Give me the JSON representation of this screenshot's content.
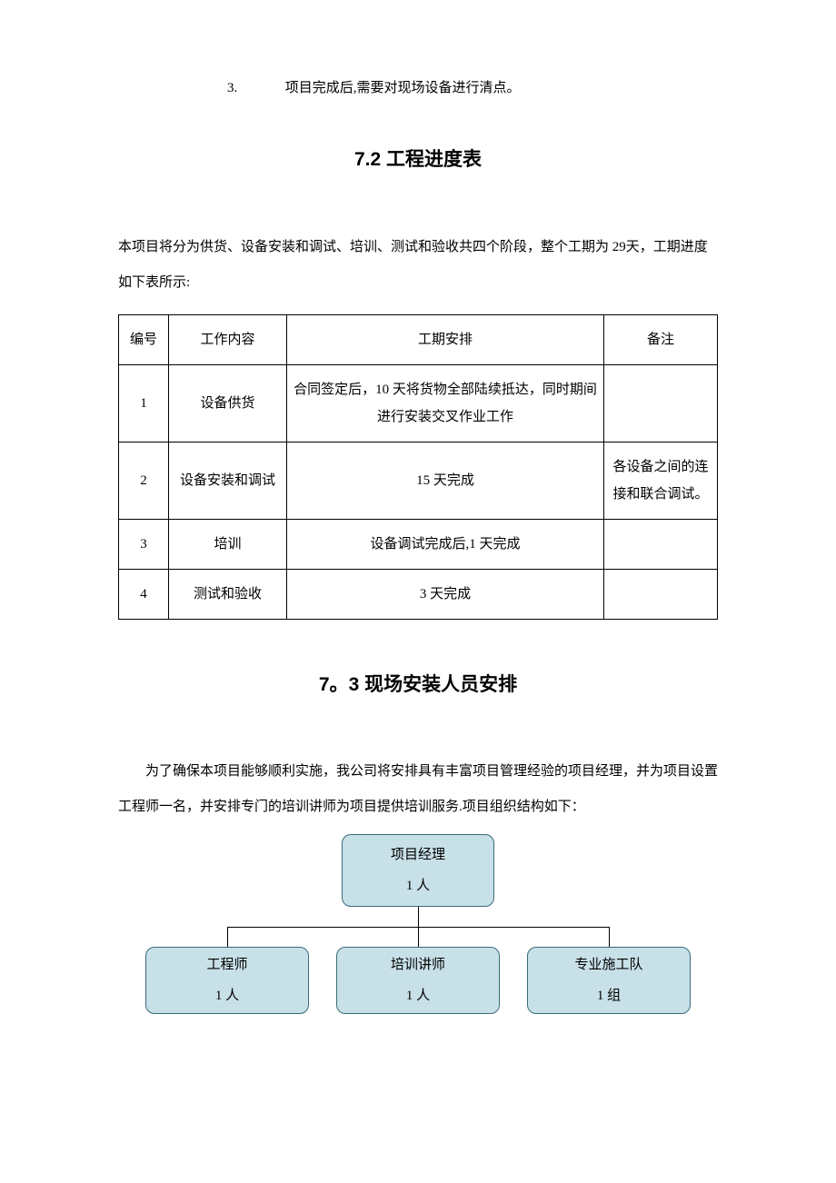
{
  "numberedItem": {
    "number": "3.",
    "text": "项目完成后,需要对现场设备进行清点。"
  },
  "section72": {
    "heading": "7.2 工程进度表",
    "intro": "本项目将分为供货、设备安装和调试、培训、测试和验收共四个阶段，整个工期为 29天，工期进度如下表所示:"
  },
  "scheduleTable": {
    "headers": {
      "num": "编号",
      "work": "工作内容",
      "sched": "工期安排",
      "note": "备注"
    },
    "rows": [
      {
        "num": "1",
        "work": "设备供货",
        "sched": "合同签定后，10 天将货物全部陆续抵达，同时期间进行安装交叉作业工作",
        "note": ""
      },
      {
        "num": "2",
        "work": "设备安装和调试",
        "sched": "15 天完成",
        "note": "各设备之间的连接和联合调试。"
      },
      {
        "num": "3",
        "work": "培训",
        "sched": "设备调试完成后,1 天完成",
        "note": ""
      },
      {
        "num": "4",
        "work": "测试和验收",
        "sched": "3 天完成",
        "note": ""
      }
    ]
  },
  "section73": {
    "heading": "7。3 现场安装人员安排",
    "body": "为了确保本项目能够顺利实施，我公司将安排具有丰富项目管理经验的项目经理，并为项目设置工程师一名，并安排专门的培训讲师为项目提供培训服务.项目组织结构如下："
  },
  "orgChart": {
    "root": {
      "title": "项目经理",
      "count": "1 人"
    },
    "children": [
      {
        "title": "工程师",
        "count": "1 人"
      },
      {
        "title": "培训讲师",
        "count": "1 人"
      },
      {
        "title": "专业施工队",
        "count": "1 组"
      }
    ],
    "style": {
      "fill": "#c8e0e8",
      "stroke": "#3a6b7a",
      "rootWidth": 168,
      "rootHeight": 80,
      "childWidth": 180,
      "childHeight": 74,
      "lineColor": "#000000"
    }
  },
  "colors": {
    "text": "#000000",
    "background": "#ffffff",
    "tableBorder": "#000000"
  }
}
